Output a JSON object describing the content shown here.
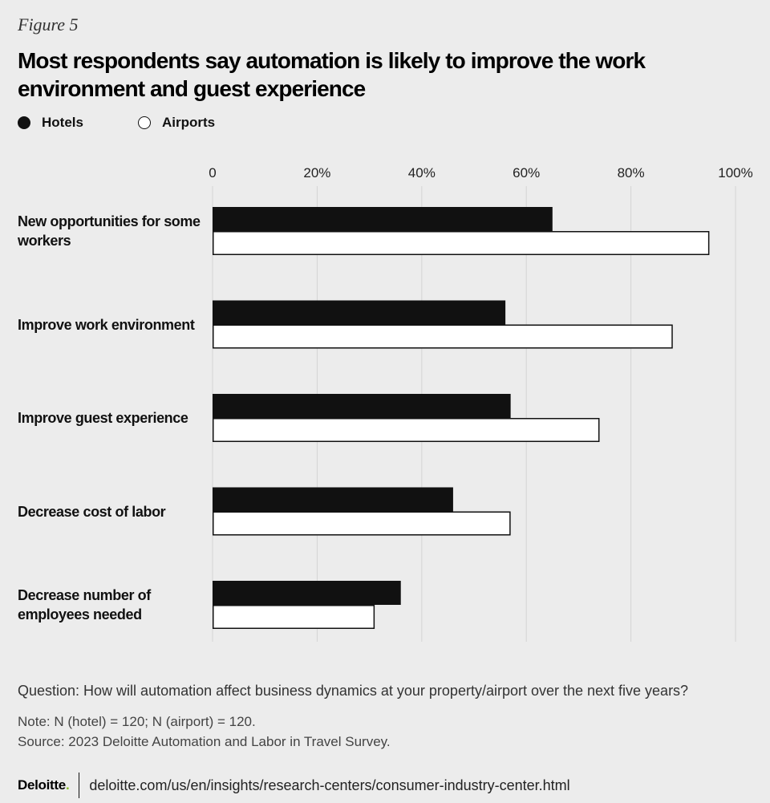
{
  "figure_label": "Figure 5",
  "title": "Most respondents say automation is likely to improve the work environment and guest experience",
  "legend": {
    "hotels": "Hotels",
    "airports": "Airports"
  },
  "colors": {
    "hotels": "#111111",
    "airports": "#ffffff",
    "grid": "#d4d4d4",
    "background": "#ececec",
    "brand_accent": "#86bc25"
  },
  "chart_data": {
    "type": "bar",
    "orientation": "horizontal",
    "categories": [
      "New opportunities for some workers",
      "Improve work environment",
      "Improve guest experience",
      "Decrease cost of labor",
      "Decrease number of employees needed"
    ],
    "series": [
      {
        "name": "Hotels",
        "values": [
          65,
          56,
          57,
          46,
          36
        ]
      },
      {
        "name": "Airports",
        "values": [
          95,
          88,
          74,
          57,
          31
        ]
      }
    ],
    "xlim": [
      0,
      100
    ],
    "tick_labels": [
      "0",
      "20%",
      "40%",
      "60%",
      "80%",
      "100%"
    ],
    "tick_values": [
      0,
      20,
      40,
      60,
      80,
      100
    ],
    "grid": true,
    "legend_position": "top-left"
  },
  "question": "Question: How will automation affect business dynamics at your property/airport over the next five years?",
  "note": "Note: N (hotel) = 120; N (airport) = 120.",
  "source": "Source: 2023 Deloitte Automation and Labor in Travel Survey.",
  "footer": {
    "brand": "Deloitte",
    "url": "deloitte.com/us/en/insights/research-centers/consumer-industry-center.html"
  }
}
